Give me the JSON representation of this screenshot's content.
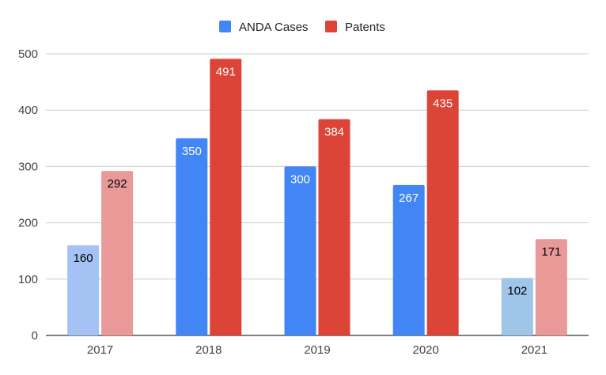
{
  "chart_data": {
    "type": "bar",
    "title": "",
    "xlabel": "",
    "ylabel": "",
    "categories": [
      "2017",
      "2018",
      "2019",
      "2020",
      "2021"
    ],
    "series": [
      {
        "name": "ANDA Cases",
        "values": [
          160,
          350,
          300,
          267,
          102
        ],
        "color": "#4285f4",
        "point_colors": [
          "#a4c2f4",
          "#4285f4",
          "#4285f4",
          "#4285f4",
          "#9fc5e8"
        ],
        "label_colors": [
          "#000000",
          "#ffffff",
          "#ffffff",
          "#ffffff",
          "#000000"
        ]
      },
      {
        "name": "Patents",
        "values": [
          292,
          491,
          384,
          435,
          171
        ],
        "color": "#db4437",
        "point_colors": [
          "#ea9999",
          "#db4437",
          "#db4437",
          "#db4437",
          "#ea9999"
        ],
        "label_colors": [
          "#000000",
          "#ffffff",
          "#ffffff",
          "#ffffff",
          "#000000"
        ]
      }
    ],
    "ylim": [
      0,
      500
    ],
    "yticks": [
      0,
      100,
      200,
      300,
      400,
      500
    ],
    "grid": true,
    "legend": "top-center",
    "data_labels": true
  }
}
